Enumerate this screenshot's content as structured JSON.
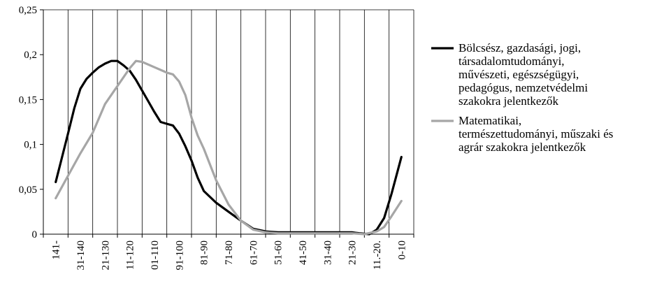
{
  "chart_data": {
    "type": "line",
    "title": "",
    "xlabel": "",
    "ylabel": "",
    "ylim": [
      0,
      0.25
    ],
    "y_ticks": [
      "0",
      "0,05",
      "0,1",
      "0,15",
      "0,2",
      "0,25"
    ],
    "x_tick_labels": [
      "141-",
      "31-140",
      "21-130",
      "11-120",
      "01-110",
      "91-100",
      "81-90",
      "71-80",
      "61-70",
      "51-60",
      "41-50",
      "31-40",
      "21-30",
      "11.-20.",
      "0-10"
    ],
    "grid": "vertical",
    "legend_position": "right",
    "colors": {
      "series1": "#000000",
      "series2": "#a6a6a6",
      "axis": "#000000",
      "grid": "#000000"
    },
    "series": [
      {
        "name": "Bölcsész, gazdasági, jogi, társadalomtudományi, művészeti, egészségügyi, pedagógus, nemzetvédelmi szakokra jelentkezők",
        "legend_lines": [
          "Bölcsész, gazdasági, jogi,",
          "társadalomtudományi,",
          "művészeti, egészségügyi,",
          "pedagógus, nemzetvédelmi",
          "szakokra jelentkezők"
        ],
        "color": "#000000",
        "points": [
          [
            0,
            0.058
          ],
          [
            0.25,
            0.085
          ],
          [
            0.5,
            0.112
          ],
          [
            0.75,
            0.14
          ],
          [
            1,
            0.162
          ],
          [
            1.25,
            0.173
          ],
          [
            1.5,
            0.18
          ],
          [
            1.75,
            0.186
          ],
          [
            2,
            0.19
          ],
          [
            2.25,
            0.193
          ],
          [
            2.5,
            0.193
          ],
          [
            2.75,
            0.188
          ],
          [
            3,
            0.182
          ],
          [
            3.25,
            0.172
          ],
          [
            3.5,
            0.16
          ],
          [
            3.75,
            0.148
          ],
          [
            4,
            0.136
          ],
          [
            4.25,
            0.125
          ],
          [
            4.5,
            0.123
          ],
          [
            4.75,
            0.121
          ],
          [
            5,
            0.112
          ],
          [
            5.25,
            0.098
          ],
          [
            5.5,
            0.082
          ],
          [
            5.75,
            0.063
          ],
          [
            6,
            0.048
          ],
          [
            6.5,
            0.035
          ],
          [
            7,
            0.025
          ],
          [
            7.5,
            0.015
          ],
          [
            8,
            0.006
          ],
          [
            8.5,
            0.003
          ],
          [
            9,
            0.002
          ],
          [
            10,
            0.002
          ],
          [
            11,
            0.002
          ],
          [
            12,
            0.002
          ],
          [
            12.3,
            0.001
          ],
          [
            12.7,
            0.0
          ],
          [
            13,
            0.005
          ],
          [
            13.3,
            0.018
          ],
          [
            13.6,
            0.045
          ],
          [
            14,
            0.086
          ]
        ]
      },
      {
        "name": "Matematikai, természettudományi, műszaki és agrár szakokra jelentkezők",
        "legend_lines": [
          "Matematikai,",
          "természettudományi, műszaki és",
          "agrár szakokra jelentkezők"
        ],
        "color": "#a6a6a6",
        "points": [
          [
            0,
            0.04
          ],
          [
            0.5,
            0.065
          ],
          [
            1,
            0.09
          ],
          [
            1.5,
            0.113
          ],
          [
            2,
            0.145
          ],
          [
            2.5,
            0.165
          ],
          [
            3,
            0.185
          ],
          [
            3.25,
            0.193
          ],
          [
            3.5,
            0.192
          ],
          [
            4,
            0.186
          ],
          [
            4.5,
            0.18
          ],
          [
            4.75,
            0.178
          ],
          [
            5,
            0.17
          ],
          [
            5.25,
            0.155
          ],
          [
            5.5,
            0.13
          ],
          [
            5.75,
            0.11
          ],
          [
            6,
            0.095
          ],
          [
            6.5,
            0.06
          ],
          [
            7,
            0.033
          ],
          [
            7.5,
            0.015
          ],
          [
            8,
            0.005
          ],
          [
            8.5,
            0.002
          ],
          [
            9,
            0.001
          ],
          [
            10,
            0.001
          ],
          [
            11,
            0.001
          ],
          [
            12,
            0.001
          ],
          [
            12.5,
            0.0
          ],
          [
            13,
            0.003
          ],
          [
            13.3,
            0.008
          ],
          [
            13.6,
            0.02
          ],
          [
            14,
            0.037
          ]
        ]
      }
    ]
  }
}
